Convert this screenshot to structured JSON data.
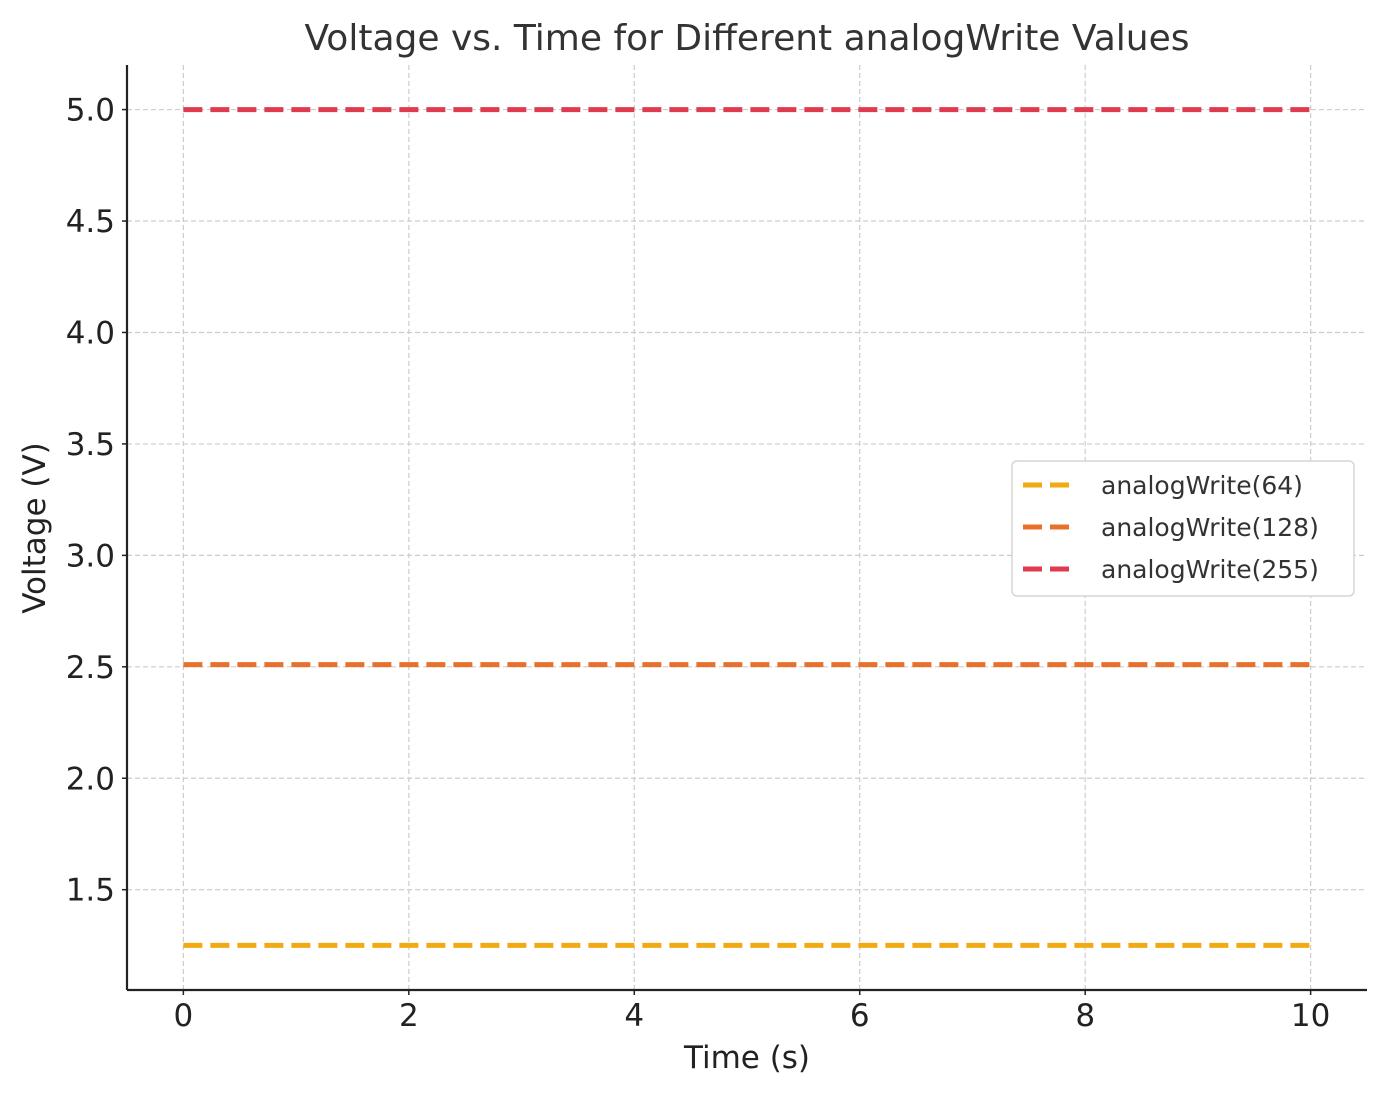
{
  "chart_data": {
    "type": "line",
    "title": "Voltage vs. Time for Different analogWrite Values",
    "xlabel": "Time (s)",
    "ylabel": "Voltage (V)",
    "xlim": [
      -0.5,
      10.5
    ],
    "ylim": [
      1.05,
      5.2
    ],
    "xticks": [
      0,
      2,
      4,
      6,
      8,
      10
    ],
    "xtick_labels": [
      "0",
      "2",
      "4",
      "6",
      "8",
      "10"
    ],
    "yticks": [
      1.5,
      2.0,
      2.5,
      3.0,
      3.5,
      4.0,
      4.5,
      5.0
    ],
    "ytick_labels": [
      "1.5",
      "2.0",
      "2.5",
      "3.0",
      "3.5",
      "4.0",
      "4.5",
      "5.0"
    ],
    "grid": true,
    "legend_position": "center-right",
    "line_style": "dashed",
    "x": [
      0,
      10
    ],
    "series": [
      {
        "name": "analogWrite(64)",
        "color": "#F2AA12",
        "values": [
          1.25,
          1.25
        ]
      },
      {
        "name": "analogWrite(128)",
        "color": "#E8702C",
        "values": [
          2.51,
          2.51
        ]
      },
      {
        "name": "analogWrite(255)",
        "color": "#E03A4E",
        "values": [
          5.0,
          5.0
        ]
      }
    ]
  }
}
